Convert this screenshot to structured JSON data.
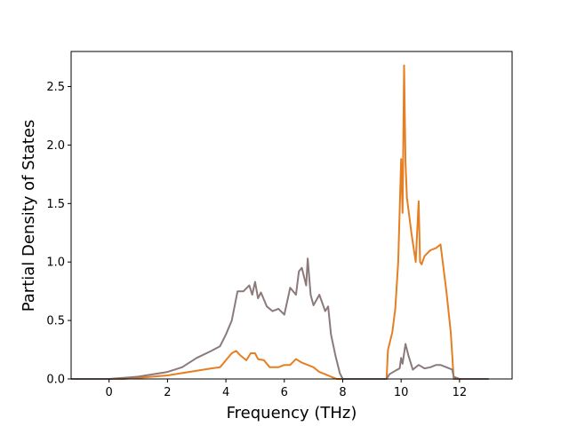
{
  "chart_data": {
    "type": "line",
    "title": "",
    "xlabel": "Frequency (THz)",
    "ylabel": "Partial Density of States",
    "xlim": [
      -1.3,
      13.8
    ],
    "ylim": [
      0,
      2.8
    ],
    "xticks": [
      0,
      2,
      4,
      6,
      8,
      10,
      12
    ],
    "yticks": [
      0.0,
      0.5,
      1.0,
      1.5,
      2.0,
      2.5
    ],
    "xtick_labels": [
      "0",
      "2",
      "4",
      "6",
      "8",
      "10",
      "12"
    ],
    "ytick_labels": [
      "0.0",
      "0.5",
      "1.0",
      "1.5",
      "2.0",
      "2.5"
    ],
    "grid": false,
    "legend": "none",
    "series": [
      {
        "color": "#e67e22",
        "x": [
          -1.3,
          0.0,
          0.5,
          1.0,
          2.0,
          3.0,
          3.5,
          3.8,
          4.0,
          4.2,
          4.35,
          4.5,
          4.7,
          4.85,
          5.0,
          5.1,
          5.3,
          5.5,
          5.8,
          6.0,
          6.2,
          6.4,
          6.6,
          6.8,
          7.0,
          7.2,
          7.4,
          7.6,
          7.8,
          8.0,
          9.5,
          9.55,
          9.7,
          9.8,
          9.9,
          10.0,
          10.05,
          10.1,
          10.15,
          10.2,
          10.35,
          10.5,
          10.6,
          10.65,
          10.7,
          10.8,
          11.0,
          11.2,
          11.35,
          11.45,
          11.55,
          11.7,
          11.75,
          11.8,
          12.0,
          13.0
        ],
        "y": [
          0.0,
          0.0,
          0.0,
          0.01,
          0.03,
          0.07,
          0.09,
          0.1,
          0.16,
          0.22,
          0.24,
          0.2,
          0.16,
          0.22,
          0.22,
          0.17,
          0.16,
          0.1,
          0.1,
          0.12,
          0.12,
          0.17,
          0.14,
          0.12,
          0.1,
          0.06,
          0.04,
          0.02,
          0.0,
          0.0,
          0.0,
          0.25,
          0.4,
          0.6,
          1.0,
          1.88,
          1.42,
          2.68,
          1.85,
          1.55,
          1.25,
          1.0,
          1.52,
          1.0,
          0.98,
          1.05,
          1.1,
          1.12,
          1.15,
          0.95,
          0.75,
          0.4,
          0.2,
          0.0,
          0.0,
          0.0
        ]
      },
      {
        "color": "#8c7a7b",
        "x": [
          -1.3,
          0.0,
          0.5,
          1.0,
          2.0,
          2.5,
          3.0,
          3.5,
          3.8,
          4.0,
          4.2,
          4.4,
          4.6,
          4.8,
          4.9,
          5.0,
          5.1,
          5.2,
          5.4,
          5.6,
          5.8,
          6.0,
          6.2,
          6.4,
          6.5,
          6.6,
          6.75,
          6.8,
          6.9,
          7.0,
          7.2,
          7.4,
          7.5,
          7.6,
          7.75,
          7.9,
          8.0,
          9.5,
          9.6,
          9.8,
          9.95,
          10.0,
          10.05,
          10.15,
          10.25,
          10.4,
          10.6,
          10.8,
          11.0,
          11.2,
          11.35,
          11.55,
          11.75,
          11.8,
          12.0,
          13.0
        ],
        "y": [
          0.0,
          0.0,
          0.01,
          0.02,
          0.06,
          0.1,
          0.18,
          0.24,
          0.28,
          0.38,
          0.5,
          0.75,
          0.75,
          0.8,
          0.72,
          0.83,
          0.69,
          0.74,
          0.62,
          0.58,
          0.6,
          0.55,
          0.78,
          0.72,
          0.92,
          0.95,
          0.8,
          1.03,
          0.72,
          0.63,
          0.72,
          0.58,
          0.62,
          0.38,
          0.2,
          0.05,
          0.0,
          0.0,
          0.04,
          0.07,
          0.09,
          0.18,
          0.13,
          0.3,
          0.2,
          0.08,
          0.12,
          0.09,
          0.1,
          0.12,
          0.12,
          0.1,
          0.08,
          0.02,
          0.0,
          0.0
        ]
      }
    ]
  }
}
